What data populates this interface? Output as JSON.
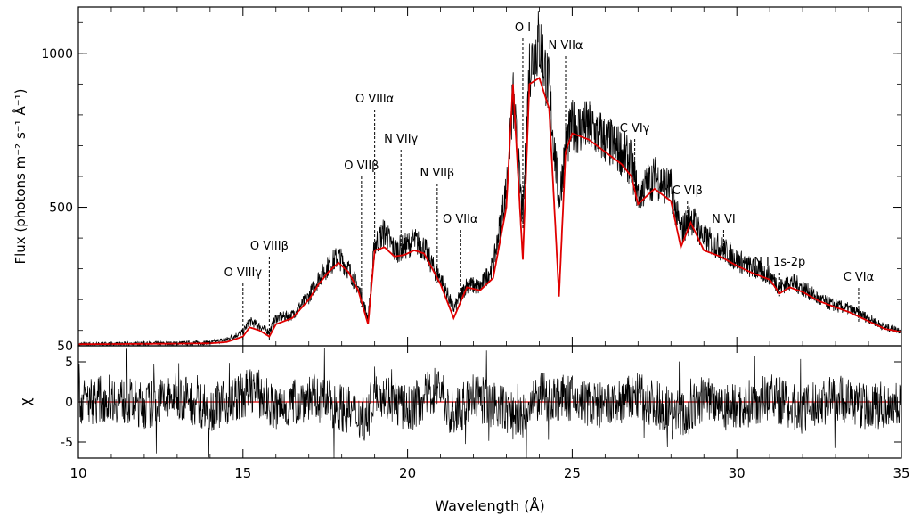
{
  "chart_data": [
    {
      "type": "line",
      "panel": "spectrum",
      "xlabel": "Wavelength (Å)",
      "ylabel": "Flux (photons m⁻² s⁻¹ Å⁻¹)",
      "xlim": [
        10,
        35
      ],
      "ylim": [
        50,
        1150
      ],
      "y_ticks": [
        50,
        500,
        1000
      ],
      "x_ticks": [
        10,
        15,
        20,
        25,
        30,
        35
      ],
      "grid": false,
      "series": [
        {
          "color": "#000000",
          "style": "histogram",
          "x": [
            10,
            13,
            14,
            14.5,
            15,
            15.2,
            15.4,
            15.8,
            16,
            16.5,
            17,
            17.3,
            17.6,
            17.9,
            18.2,
            18.5,
            18.8,
            19.0,
            19.3,
            19.6,
            19.9,
            20.2,
            20.5,
            20.8,
            21.0,
            21.4,
            21.8,
            22.2,
            22.6,
            23.0,
            23.2,
            23.5,
            23.7,
            24.0,
            24.3,
            24.6,
            24.8,
            25.0,
            25.5,
            26.0,
            26.5,
            26.8,
            27.0,
            27.5,
            28.0,
            28.3,
            28.6,
            29.0,
            29.5,
            30.0,
            30.5,
            31.0,
            31.3,
            31.6,
            32.0,
            32.5,
            33.0,
            33.4,
            34.0,
            34.5,
            35.0
          ],
          "y": [
            55,
            58,
            60,
            70,
            95,
            130,
            120,
            95,
            140,
            150,
            210,
            270,
            310,
            340,
            300,
            240,
            140,
            380,
            420,
            360,
            370,
            390,
            370,
            300,
            270,
            170,
            250,
            240,
            310,
            560,
            860,
            460,
            960,
            1040,
            880,
            520,
            700,
            760,
            760,
            720,
            680,
            640,
            540,
            600,
            560,
            420,
            470,
            400,
            370,
            330,
            300,
            280,
            240,
            260,
            240,
            200,
            180,
            170,
            140,
            110,
            100
          ]
        },
        {
          "color": "#e00000",
          "style": "model",
          "x": [
            10,
            13,
            14,
            14.5,
            15,
            15.2,
            15.5,
            15.8,
            16,
            16.5,
            17,
            17.3,
            17.6,
            17.9,
            18.2,
            18.5,
            18.8,
            19.0,
            19.3,
            19.6,
            19.9,
            20.2,
            20.5,
            20.8,
            21.0,
            21.4,
            21.8,
            22.2,
            22.6,
            23.0,
            23.2,
            23.5,
            23.7,
            24.0,
            24.3,
            24.6,
            24.8,
            25.0,
            25.5,
            26.0,
            26.5,
            26.8,
            27.0,
            27.5,
            28.0,
            28.3,
            28.6,
            29.0,
            29.5,
            30.0,
            30.5,
            31.0,
            31.3,
            31.6,
            32.0,
            32.5,
            33.0,
            33.4,
            34.0,
            34.5,
            35.0
          ],
          "y": [
            55,
            57,
            58,
            62,
            80,
            110,
            100,
            80,
            120,
            140,
            200,
            250,
            290,
            320,
            290,
            230,
            120,
            360,
            370,
            340,
            345,
            360,
            350,
            290,
            250,
            140,
            240,
            230,
            270,
            500,
            900,
            330,
            900,
            920,
            820,
            210,
            680,
            740,
            720,
            680,
            640,
            600,
            510,
            560,
            520,
            370,
            450,
            360,
            340,
            310,
            285,
            265,
            220,
            240,
            225,
            195,
            175,
            160,
            130,
            105,
            95
          ]
        }
      ],
      "annotations": [
        {
          "label": "O VIIIγ",
          "x": 15.0
        },
        {
          "label": "O VIIIβ",
          "x": 15.8
        },
        {
          "label": "O VIIβ",
          "x": 18.6
        },
        {
          "label": "O VIIIα",
          "x": 19.0
        },
        {
          "label": "N VIIγ",
          "x": 19.8
        },
        {
          "label": "N VIIβ",
          "x": 20.9
        },
        {
          "label": "O VIIα",
          "x": 21.6
        },
        {
          "label": "O I",
          "x": 23.5
        },
        {
          "label": "N VIIα",
          "x": 24.8
        },
        {
          "label": "C VIγ",
          "x": 26.9
        },
        {
          "label": "C VIβ",
          "x": 28.5
        },
        {
          "label": "N VI",
          "x": 29.6
        },
        {
          "label": "N I 1s-2p",
          "x": 31.3
        },
        {
          "label": "C VIα",
          "x": 33.7
        }
      ]
    },
    {
      "type": "line",
      "panel": "residuals",
      "ylabel": "χ",
      "xlabel": "Wavelength (Å)",
      "xlim": [
        10,
        35
      ],
      "ylim": [
        -7,
        7
      ],
      "y_tick_labels": [
        "5",
        "0",
        "-5"
      ],
      "y_ticks": [
        5,
        0,
        -5
      ],
      "zero_line_color": "#e00000",
      "series": [
        {
          "color": "#000000",
          "x": [
            10,
            11,
            12,
            13,
            14,
            15,
            15.3,
            16,
            17,
            18,
            18.8,
            19,
            20,
            21,
            21.3,
            22,
            23,
            23.5,
            24,
            25,
            26,
            27,
            28,
            28.5,
            29,
            30,
            31,
            32,
            33,
            34,
            35
          ],
          "y": [
            0,
            1.5,
            -1.5,
            2,
            -2,
            2,
            5,
            -3,
            2,
            -2,
            -6,
            5,
            -3,
            6,
            -6,
            2,
            -3,
            -6,
            2,
            1,
            -2,
            2,
            -3,
            -5,
            2,
            -2,
            2,
            -3,
            2,
            -2,
            0
          ]
        }
      ]
    }
  ]
}
